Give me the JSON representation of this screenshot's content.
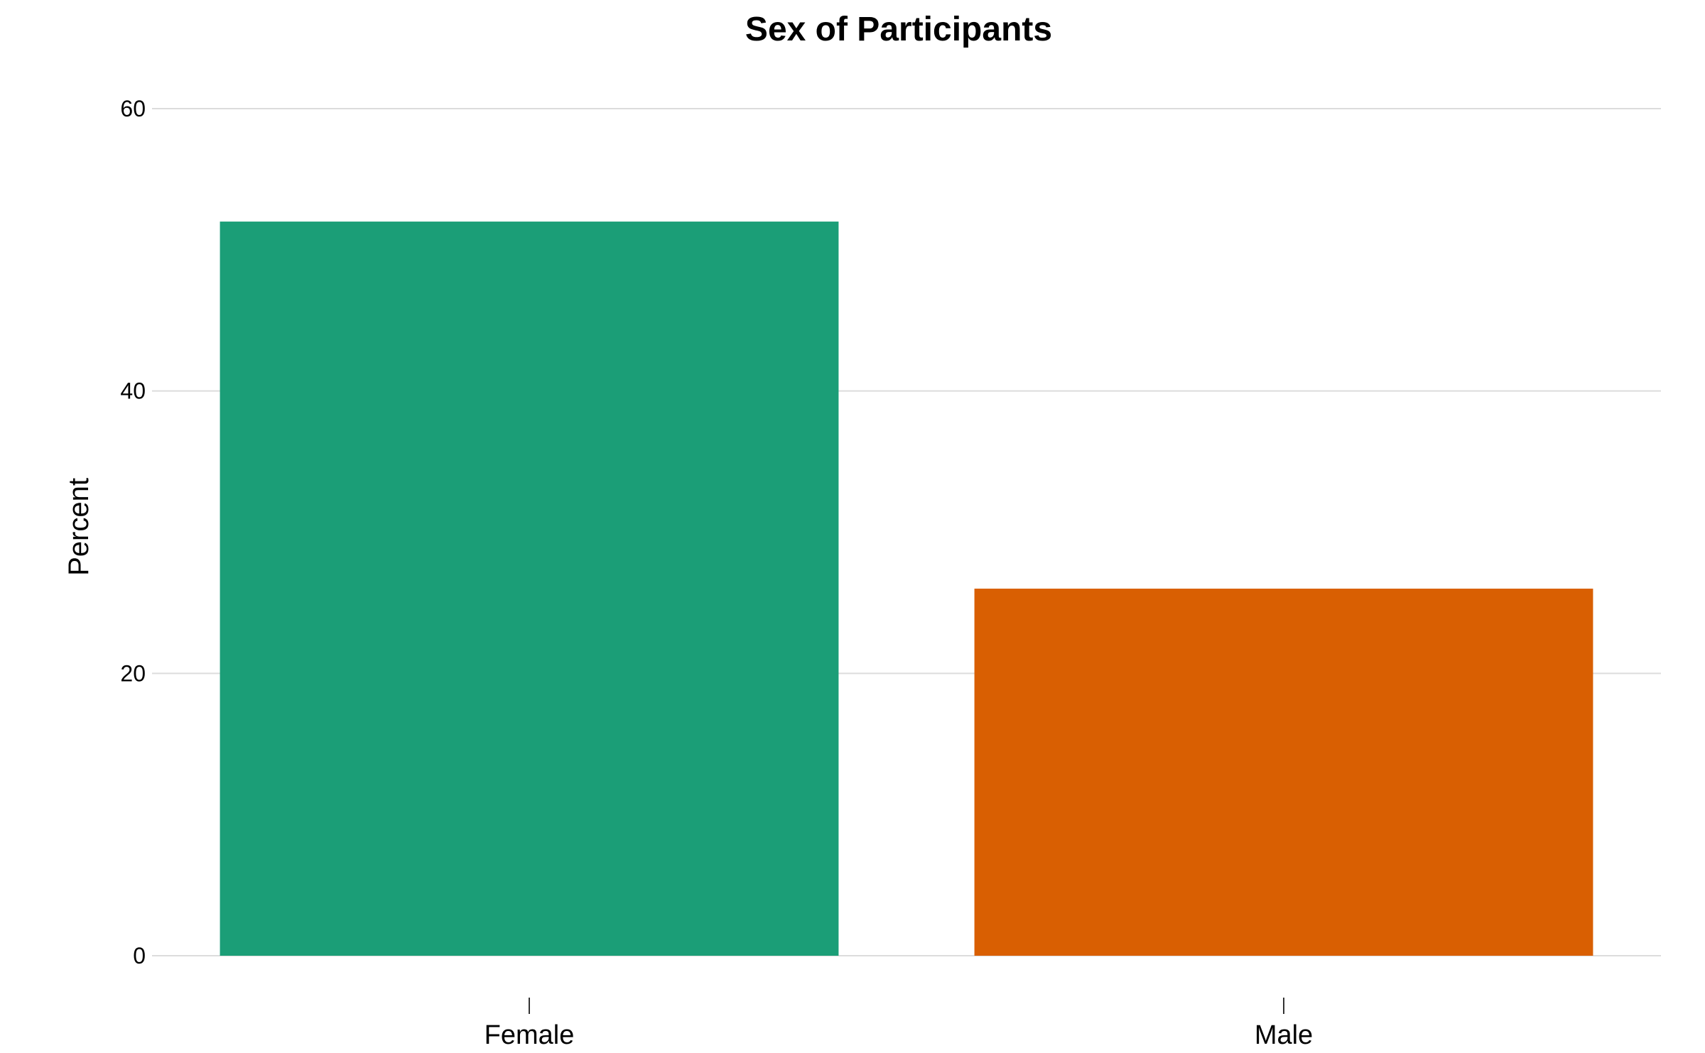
{
  "chart_data": {
    "type": "bar",
    "title": "Sex of Participants",
    "xlabel": "",
    "ylabel": "Percent",
    "categories": [
      "Female",
      "Male"
    ],
    "values": [
      52,
      26
    ],
    "colors": [
      "#1b9e77",
      "#d95f02"
    ],
    "ylim": [
      0,
      60
    ],
    "yticks": [
      0,
      20,
      40,
      60
    ],
    "grid": "horizontal",
    "legend": "none"
  }
}
